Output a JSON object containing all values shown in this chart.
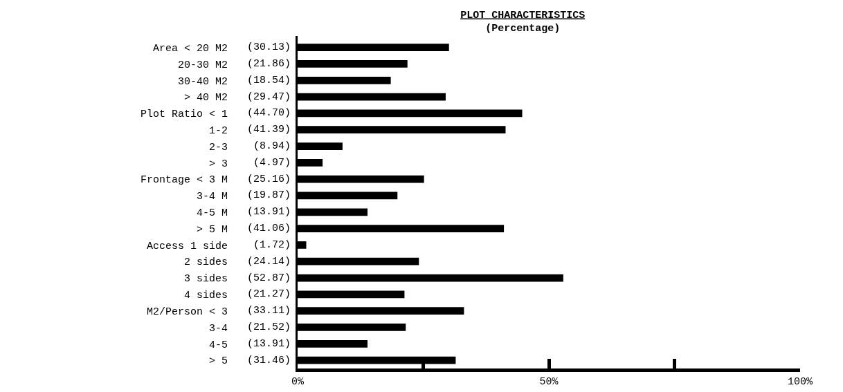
{
  "chart_data": {
    "type": "bar",
    "orientation": "horizontal",
    "title": "PLOT CHARACTERISTICS",
    "subtitle": "(Percentage)",
    "categories": [
      "Area < 20 M2",
      "20-30 M2",
      "30-40 M2",
      "> 40 M2",
      "Plot Ratio < 1",
      "1-2",
      "2-3",
      "> 3",
      "Frontage < 3 M",
      "3-4 M",
      "4-5 M",
      "> 5 M",
      "Access 1 side",
      "2 sides",
      "3 sides",
      "4 sides",
      "M2/Person < 3",
      "3-4",
      "4-5",
      "> 5"
    ],
    "values": [
      30.13,
      21.86,
      18.54,
      29.47,
      44.7,
      41.39,
      8.94,
      4.97,
      25.16,
      19.87,
      13.91,
      41.06,
      1.72,
      24.14,
      52.87,
      21.27,
      33.11,
      21.52,
      13.91,
      31.46
    ],
    "value_labels": [
      "(30.13)",
      "(21.86)",
      "(18.54)",
      "(29.47)",
      "(44.70)",
      "(41.39)",
      "(8.94)",
      "(4.97)",
      "(25.16)",
      "(19.87)",
      "(13.91)",
      "(41.06)",
      "(1.72)",
      "(24.14)",
      "(52.87)",
      "(21.27)",
      "(33.11)",
      "(21.52)",
      "(13.91)",
      "(31.46)"
    ],
    "color": "#000000",
    "xlim": [
      0,
      100
    ],
    "xticks": [
      {
        "value": 0,
        "label": "0%"
      },
      {
        "value": 25,
        "label": null
      },
      {
        "value": 50,
        "label": "50%"
      },
      {
        "value": 75,
        "label": null
      },
      {
        "value": 100,
        "label": "100%"
      }
    ],
    "grid": false
  }
}
